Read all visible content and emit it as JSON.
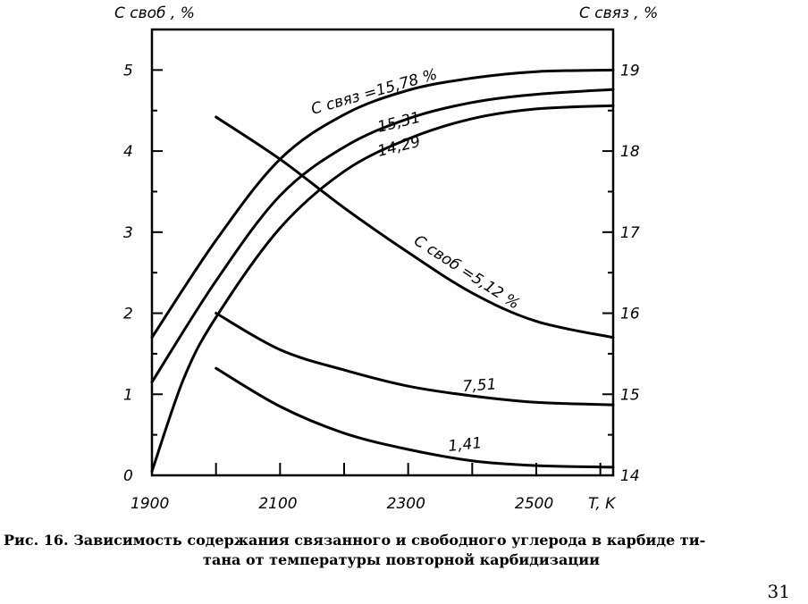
{
  "chart_data": {
    "type": "line",
    "y_left_title": "C своб , %",
    "y_right_title": "C связ , %",
    "x_title": "T, K",
    "x_ticks": [
      1900,
      2000,
      2100,
      2200,
      2300,
      2400,
      2500,
      2600
    ],
    "x_tick_labels": [
      "1900",
      "2100",
      "2300",
      "2500"
    ],
    "xlim": [
      1900,
      2620
    ],
    "y_left_ticks": [
      "0",
      "1",
      "2",
      "3",
      "4",
      "5"
    ],
    "y_left_lim": [
      0,
      5.5
    ],
    "y_right_ticks": [
      "14",
      "15",
      "16",
      "17",
      "18",
      "19"
    ],
    "y_right_lim": [
      14,
      19.5
    ],
    "series_right_axis": [
      {
        "label": "C связ =15,78 %",
        "x": [
          1900,
          2000,
          2100,
          2200,
          2300,
          2400,
          2500,
          2620
        ],
        "y": [
          15.7,
          16.9,
          17.9,
          18.45,
          18.75,
          18.9,
          18.98,
          19.0
        ]
      },
      {
        "label": "15,31",
        "x": [
          1900,
          2000,
          2100,
          2200,
          2300,
          2400,
          2500,
          2620
        ],
        "y": [
          15.15,
          16.4,
          17.45,
          18.05,
          18.4,
          18.6,
          18.7,
          18.76
        ]
      },
      {
        "label": "14,29",
        "x": [
          1900,
          1950,
          2000,
          2100,
          2200,
          2300,
          2400,
          2500,
          2620
        ],
        "y": [
          14.05,
          15.2,
          15.95,
          17.05,
          17.75,
          18.15,
          18.4,
          18.52,
          18.56
        ]
      }
    ],
    "series_left_axis": [
      {
        "label": "C своб =5,12 %",
        "x": [
          2000,
          2100,
          2200,
          2300,
          2400,
          2500,
          2620
        ],
        "y": [
          4.42,
          3.9,
          3.3,
          2.75,
          2.25,
          1.9,
          1.7
        ]
      },
      {
        "label": "7,51",
        "x": [
          2000,
          2100,
          2200,
          2300,
          2400,
          2500,
          2620
        ],
        "y": [
          2.0,
          1.55,
          1.3,
          1.1,
          0.98,
          0.9,
          0.87
        ]
      },
      {
        "label": "1,41",
        "x": [
          2000,
          2100,
          2200,
          2300,
          2400,
          2500,
          2620
        ],
        "y": [
          1.32,
          0.85,
          0.52,
          0.32,
          0.18,
          0.12,
          0.1
        ]
      }
    ]
  },
  "caption": {
    "line1": "Рис. 16. Зависимость содержания связанного и свободного углерода в карбиде ти-",
    "line2": "тана от температуры повторной карбидизации"
  },
  "page_number": "31"
}
